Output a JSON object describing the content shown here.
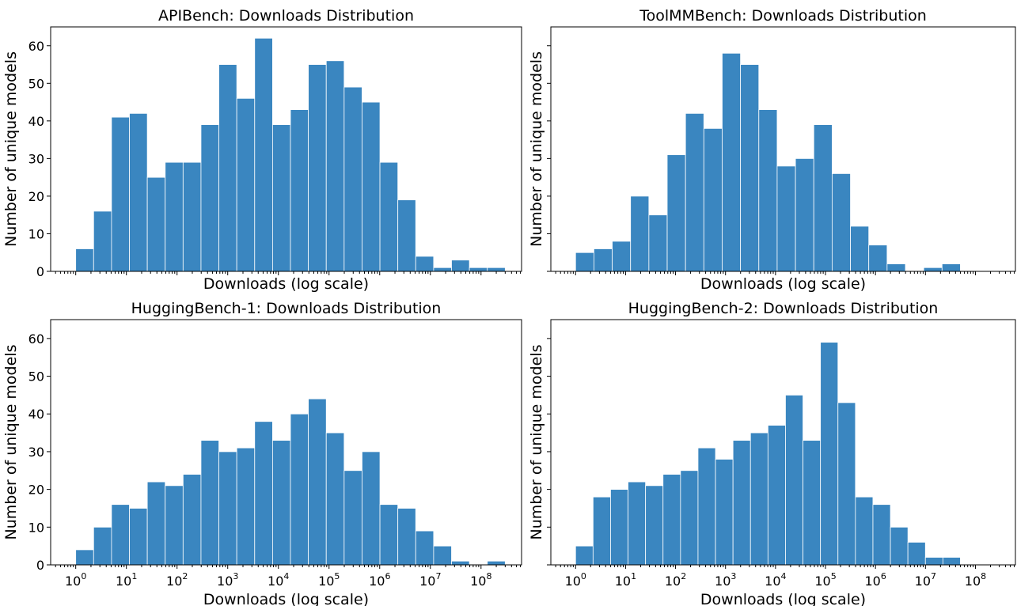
{
  "colors": {
    "bar": "#3a86c0",
    "bar_edge": "#ffffff"
  },
  "chart_data": [
    {
      "type": "bar",
      "title": "APIBench: Downloads Distribution",
      "xlabel": "Downloads (log scale)",
      "ylabel": "Number of unique models",
      "x_scale": "log",
      "xlim": [
        0.32,
        631000000
      ],
      "ylim": [
        0,
        65
      ],
      "yticks": [
        0,
        10,
        20,
        30,
        40,
        50,
        60
      ],
      "show_xtick_labels": false,
      "show_ytick_labels": true,
      "bin_start": 1,
      "bin_end": 300000000,
      "counts": [
        6,
        16,
        41,
        42,
        25,
        29,
        29,
        39,
        55,
        46,
        62,
        39,
        43,
        55,
        56,
        49,
        45,
        29,
        19,
        4,
        1,
        3,
        1,
        1
      ],
      "grid": false
    },
    {
      "type": "bar",
      "title": "ToolMMBench: Downloads Distribution",
      "xlabel": "Downloads (log scale)",
      "ylabel": "Number of unique models",
      "x_scale": "log",
      "xlim": [
        0.32,
        631000000
      ],
      "ylim": [
        0,
        65
      ],
      "yticks": [
        0,
        10,
        20,
        30,
        40,
        50,
        60
      ],
      "show_xtick_labels": false,
      "show_ytick_labels": false,
      "bin_start": 1,
      "bin_end": 50000000,
      "counts": [
        5,
        6,
        8,
        20,
        15,
        31,
        42,
        38,
        58,
        55,
        43,
        28,
        30,
        39,
        26,
        12,
        7,
        2,
        0,
        1,
        2
      ],
      "grid": false
    },
    {
      "type": "bar",
      "title": "HuggingBench-1: Downloads Distribution",
      "xlabel": "Downloads (log scale)",
      "ylabel": "Number of unique models",
      "x_scale": "log",
      "xlim": [
        0.32,
        631000000
      ],
      "ylim": [
        0,
        65
      ],
      "yticks": [
        0,
        10,
        20,
        30,
        40,
        50,
        60
      ],
      "show_xtick_labels": true,
      "show_ytick_labels": true,
      "bin_start": 1,
      "bin_end": 300000000,
      "counts": [
        4,
        10,
        16,
        15,
        22,
        21,
        24,
        33,
        30,
        31,
        38,
        33,
        40,
        44,
        35,
        25,
        30,
        16,
        15,
        9,
        5,
        1,
        0,
        1
      ],
      "grid": false
    },
    {
      "type": "bar",
      "title": "HuggingBench-2: Downloads Distribution",
      "xlabel": "Downloads (log scale)",
      "ylabel": "Number of unique models",
      "x_scale": "log",
      "xlim": [
        0.32,
        631000000
      ],
      "ylim": [
        0,
        65
      ],
      "yticks": [
        0,
        10,
        20,
        30,
        40,
        50,
        60
      ],
      "show_xtick_labels": true,
      "show_ytick_labels": false,
      "bin_start": 1,
      "bin_end": 50000000,
      "counts": [
        5,
        18,
        20,
        22,
        21,
        24,
        25,
        31,
        28,
        33,
        35,
        37,
        45,
        33,
        59,
        43,
        18,
        16,
        10,
        6,
        2,
        2
      ],
      "grid": false
    }
  ],
  "xtick_values": [
    1,
    10,
    100,
    1000,
    10000,
    100000,
    1000000,
    10000000,
    100000000
  ],
  "xtick_base": "10",
  "xtick_exponents": [
    "0",
    "1",
    "2",
    "3",
    "4",
    "5",
    "6",
    "7",
    "8"
  ]
}
